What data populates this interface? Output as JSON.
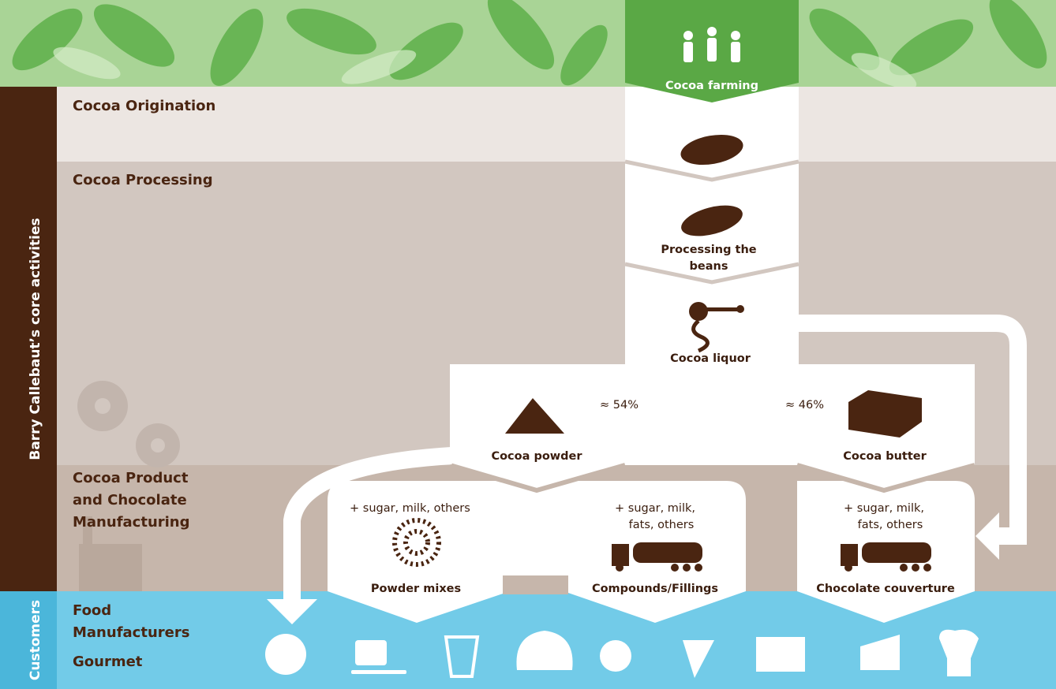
{
  "sidebar": {
    "core": "Barry Callebaut’s core activities",
    "customers": "Customers"
  },
  "stages": {
    "origination": [
      "Cocoa Origination"
    ],
    "processing": [
      "Cocoa Processing"
    ],
    "manufacturing": [
      "Cocoa Product",
      "and Chocolate",
      "Manufacturing"
    ],
    "food": [
      "Food",
      "Manufacturers"
    ],
    "gourmet": [
      "Gourmet"
    ]
  },
  "nodes": {
    "farming": [
      "Cocoa farming"
    ],
    "beans": [
      "Processing the",
      "beans"
    ],
    "liquor": [
      "Cocoa liquor"
    ],
    "powder": [
      "Cocoa powder"
    ],
    "butter": [
      "Cocoa butter"
    ],
    "powder_share": "≈ 54%",
    "butter_share": "≈ 46%",
    "powder_mixes": {
      "additives": [
        "+ sugar, milk, others"
      ],
      "label": [
        "Powder mixes"
      ]
    },
    "compounds": {
      "additives": [
        "+ sugar, milk,",
        "fats, others"
      ],
      "label": [
        "Compounds/Fillings"
      ]
    },
    "couverture": {
      "additives": [
        "+ sugar, milk,",
        "fats, others"
      ],
      "label": [
        "Chocolate couverture"
      ]
    }
  }
}
